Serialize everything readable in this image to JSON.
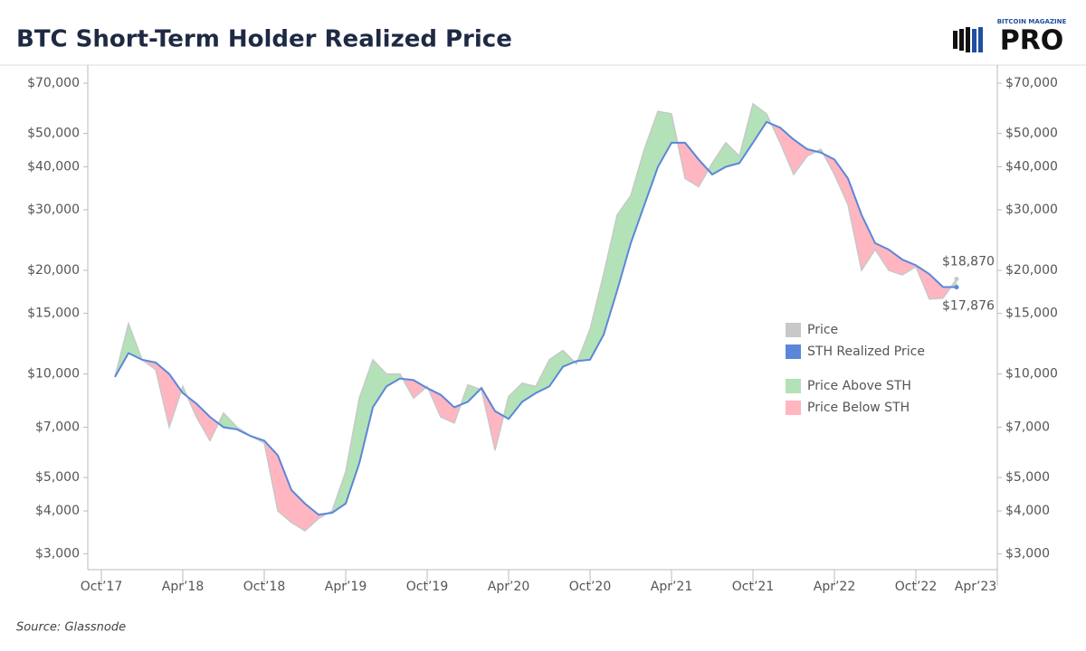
{
  "chart_data": {
    "type": "line",
    "title": "BTC Short-Term Holder Realized Price",
    "logo_small": "BITCOIN MAGAZINE",
    "logo": "PRO",
    "source": "Source: Glassnode",
    "log_scale": true,
    "legend": "center-right",
    "x": [
      "2017-11",
      "2017-12",
      "2018-01",
      "2018-02",
      "2018-03",
      "2018-04",
      "2018-05",
      "2018-06",
      "2018-07",
      "2018-08",
      "2018-09",
      "2018-10",
      "2018-11",
      "2018-12",
      "2019-01",
      "2019-02",
      "2019-03",
      "2019-04",
      "2019-05",
      "2019-06",
      "2019-07",
      "2019-08",
      "2019-09",
      "2019-10",
      "2019-11",
      "2019-12",
      "2020-01",
      "2020-02",
      "2020-03",
      "2020-04",
      "2020-05",
      "2020-06",
      "2020-07",
      "2020-08",
      "2020-09",
      "2020-10",
      "2020-11",
      "2020-12",
      "2021-01",
      "2021-02",
      "2021-03",
      "2021-04",
      "2021-05",
      "2021-06",
      "2021-07",
      "2021-08",
      "2021-09",
      "2021-10",
      "2021-11",
      "2021-12",
      "2022-01",
      "2022-02",
      "2022-03",
      "2022-04",
      "2022-05",
      "2022-06",
      "2022-07",
      "2022-08",
      "2022-09",
      "2022-10",
      "2022-11",
      "2022-12",
      "2023-01"
    ],
    "series": [
      {
        "name": "Price",
        "color": "#c8c8c8",
        "last_label": "$18,870",
        "values": [
          9800,
          14000,
          11000,
          10300,
          7000,
          9200,
          7500,
          6400,
          7700,
          7000,
          6600,
          6300,
          4000,
          3700,
          3500,
          3800,
          4000,
          5200,
          8500,
          11000,
          10000,
          10000,
          8500,
          9200,
          7500,
          7200,
          9300,
          9000,
          6000,
          8600,
          9400,
          9200,
          11000,
          11700,
          10700,
          13500,
          19500,
          29000,
          33000,
          45000,
          58000,
          57000,
          37000,
          35000,
          41000,
          47000,
          43000,
          61000,
          57000,
          47000,
          38000,
          43000,
          45000,
          38000,
          31000,
          20000,
          23000,
          20000,
          19400,
          20500,
          16500,
          16600,
          18870
        ]
      },
      {
        "name": "STH Realized Price",
        "color": "#5b86d9",
        "last_label": "$17,876",
        "values": [
          9800,
          11500,
          11000,
          10800,
          10000,
          8800,
          8200,
          7500,
          7000,
          6900,
          6600,
          6400,
          5800,
          4600,
          4200,
          3900,
          3950,
          4200,
          5500,
          8000,
          9200,
          9700,
          9600,
          9100,
          8700,
          8000,
          8300,
          9100,
          7800,
          7400,
          8300,
          8800,
          9200,
          10500,
          10900,
          11000,
          13000,
          17500,
          24000,
          31000,
          40000,
          47000,
          47000,
          42000,
          38000,
          40000,
          41000,
          47000,
          54000,
          52000,
          48000,
          45000,
          44000,
          42000,
          37000,
          29000,
          24000,
          23000,
          21500,
          20700,
          19500,
          17900,
          17876
        ]
      }
    ],
    "fills": [
      {
        "name": "Price Above STH",
        "color": "#b3e2b8"
      },
      {
        "name": "Price Below STH",
        "color": "#ffb6c1"
      }
    ],
    "xlim": [
      "2017-09",
      "2023-04"
    ],
    "xticks": [
      {
        "value": "2017-10",
        "label": "Oct’17"
      },
      {
        "value": "2018-04",
        "label": "Apr’18"
      },
      {
        "value": "2018-10",
        "label": "Oct’18"
      },
      {
        "value": "2019-04",
        "label": "Apr’19"
      },
      {
        "value": "2019-10",
        "label": "Oct’19"
      },
      {
        "value": "2020-04",
        "label": "Apr’20"
      },
      {
        "value": "2020-10",
        "label": "Oct’20"
      },
      {
        "value": "2021-04",
        "label": "Apr’21"
      },
      {
        "value": "2021-10",
        "label": "Oct’21"
      },
      {
        "value": "2022-04",
        "label": "Apr’22"
      },
      {
        "value": "2022-10",
        "label": "Oct’22"
      },
      {
        "value": "2023-04",
        "label": "Apr’23"
      }
    ],
    "ylim": [
      2700,
      79000
    ],
    "yticks": [
      {
        "value": 3000,
        "label": "$3,000"
      },
      {
        "value": 4000,
        "label": "$4,000"
      },
      {
        "value": 5000,
        "label": "$5,000"
      },
      {
        "value": 7000,
        "label": "$7,000"
      },
      {
        "value": 10000,
        "label": "$10,000"
      },
      {
        "value": 15000,
        "label": "$15,000"
      },
      {
        "value": 20000,
        "label": "$20,000"
      },
      {
        "value": 30000,
        "label": "$30,000"
      },
      {
        "value": 40000,
        "label": "$40,000"
      },
      {
        "value": 50000,
        "label": "$50,000"
      },
      {
        "value": 70000,
        "label": "$70,000"
      }
    ]
  }
}
